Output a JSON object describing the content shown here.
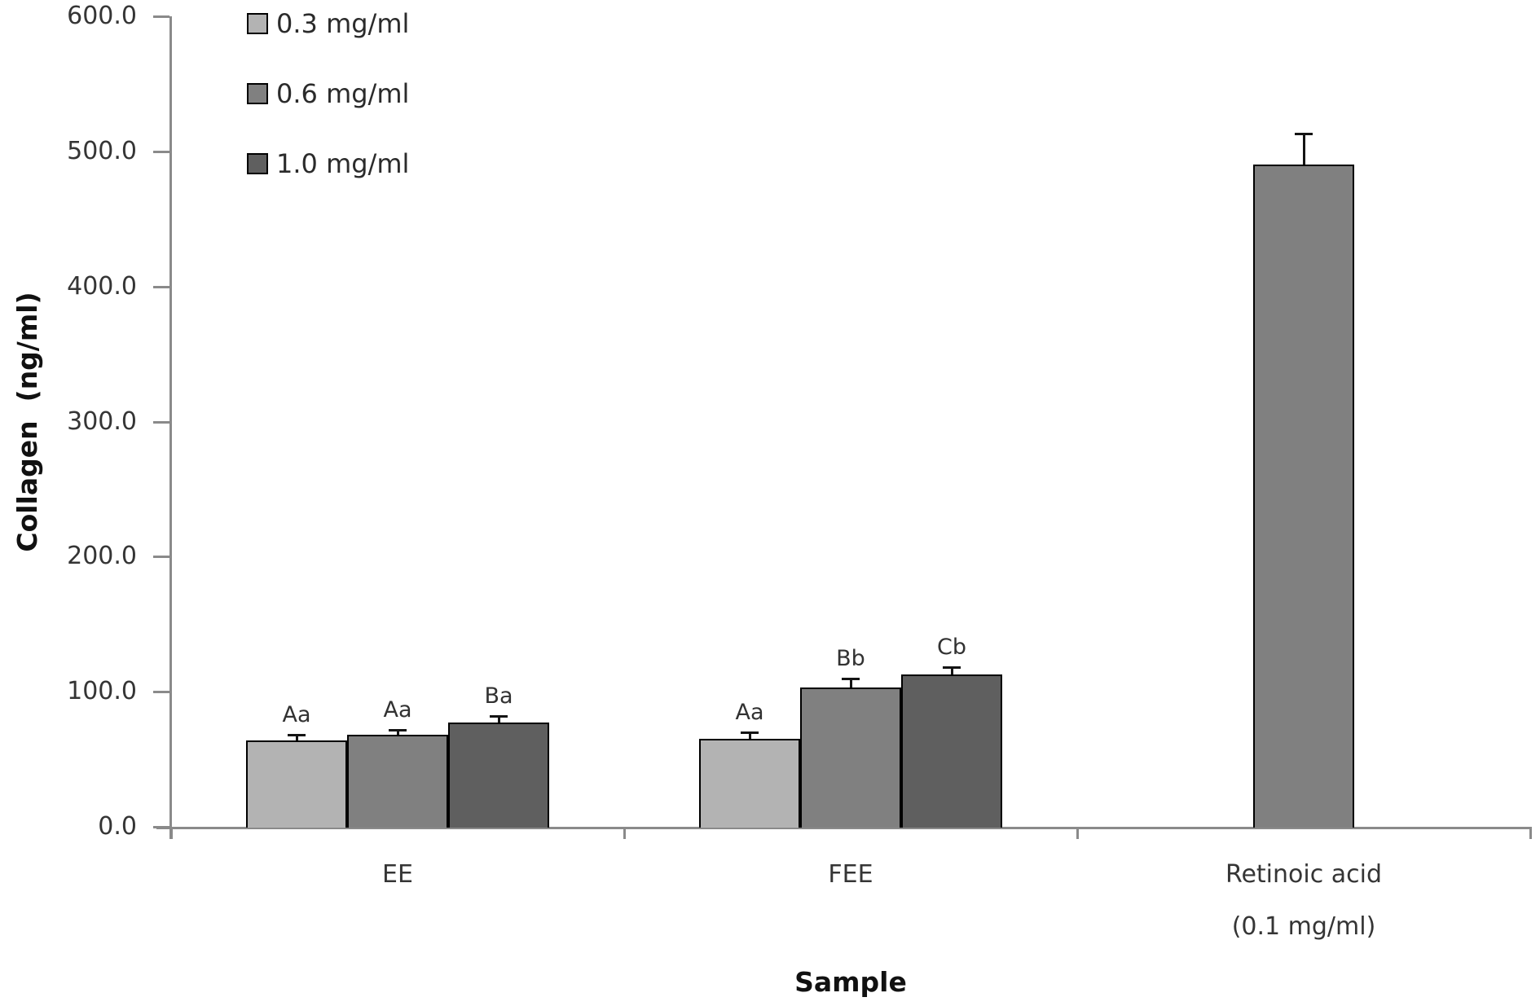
{
  "chart_data": {
    "type": "bar",
    "title": "",
    "xlabel": "Sample",
    "ylabel": "Collagen  (ng/ml)",
    "ylim": [
      0,
      600
    ],
    "ytick_step": 100,
    "ytick_labels": [
      "0.0",
      "100.0",
      "200.0",
      "300.0",
      "400.0",
      "500.0",
      "600.0"
    ],
    "grid": false,
    "legend_position": "top-left",
    "categories": [
      {
        "lines": [
          "EE"
        ]
      },
      {
        "lines": [
          "FEE"
        ]
      },
      {
        "lines": [
          "Retinoic acid",
          "(0.1 mg/ml)"
        ]
      }
    ],
    "series": [
      {
        "name": "0.3 mg/ml",
        "color": "#b3b3b3",
        "values": [
          64,
          65,
          null
        ],
        "errors": [
          4,
          5,
          null
        ],
        "point_labels": [
          "Aa",
          "Aa",
          null
        ]
      },
      {
        "name": "0.6 mg/ml",
        "color": "#808080",
        "values": [
          68,
          103,
          490
        ],
        "errors": [
          4,
          7,
          23
        ],
        "point_labels": [
          "Aa",
          "Bb",
          null
        ]
      },
      {
        "name": "1.0 mg/ml",
        "color": "#5f5f5f",
        "values": [
          77,
          113,
          null
        ],
        "errors": [
          5,
          5,
          null
        ],
        "point_labels": [
          "Ba",
          "Cb",
          null
        ]
      }
    ],
    "colors": {
      "axis_line": "#8a8a8a",
      "bar_border": "#000000",
      "error_bar": "#141414",
      "text": "#353535"
    }
  }
}
